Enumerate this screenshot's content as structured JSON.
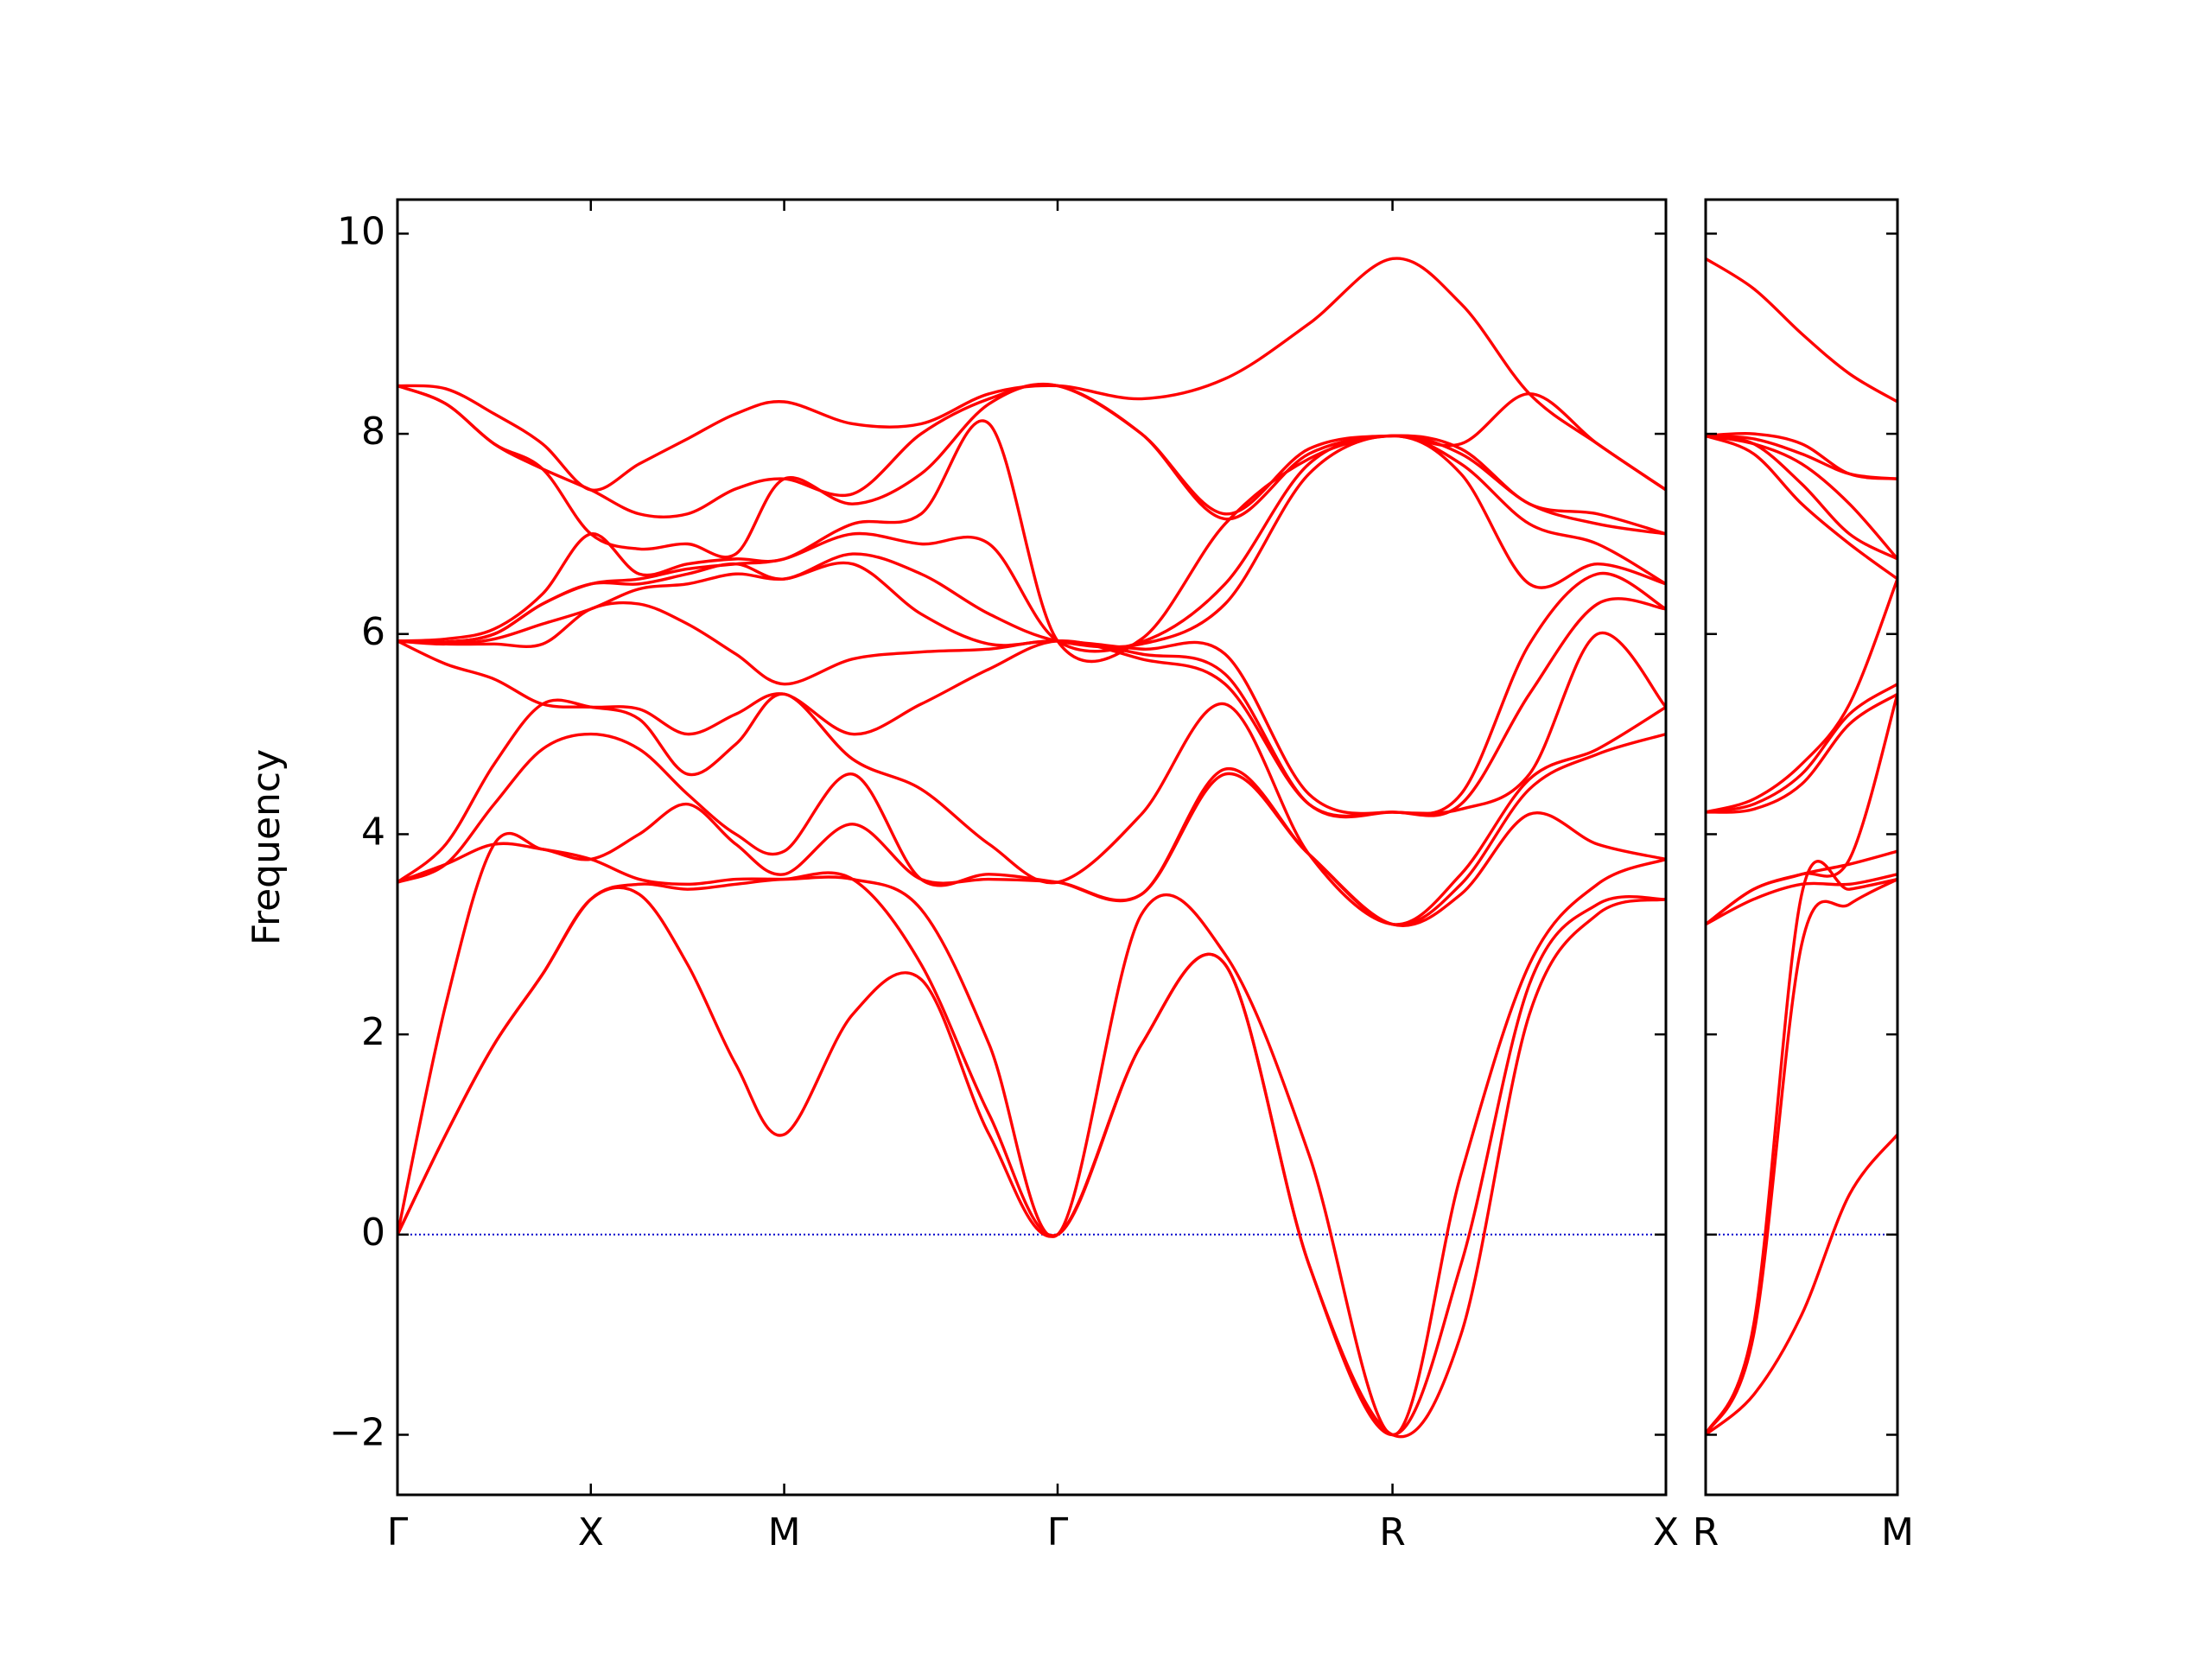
{
  "chart_data": [
    {
      "type": "line",
      "ylabel": "Frequency",
      "x": [
        0,
        0.125,
        0.25,
        0.375,
        0.5,
        0.625,
        0.75,
        0.875,
        1.0,
        1.177,
        1.354,
        1.53,
        1.707,
        1.924,
        2.14,
        2.357,
        2.573,
        2.75,
        2.927,
        3.103,
        3.28
      ],
      "xlim": [
        0,
        3.28
      ],
      "xticks": [
        {
          "value": 0,
          "label": "Γ"
        },
        {
          "value": 0.5,
          "label": "X"
        },
        {
          "value": 1.0,
          "label": "M"
        },
        {
          "value": 1.707,
          "label": "Γ"
        },
        {
          "value": 2.573,
          "label": "R"
        },
        {
          "value": 3.28,
          "label": "X"
        }
      ],
      "ylim": [
        -2.6,
        10.34
      ],
      "yticks": [
        {
          "value": -2,
          "label": "−2"
        },
        0,
        2,
        4,
        6,
        8,
        10
      ],
      "hline": {
        "y": 0,
        "color": "#0000cc",
        "style": "dotted"
      },
      "series": [
        {
          "color": "#ff0000",
          "values": [
            0,
            1.0,
            1.9,
            2.6,
            3.35,
            3.4,
            2.7,
            1.7,
            1.0,
            2.2,
            2.55,
            1.0,
            0,
            1.9,
            2.7,
            -0.3,
            -2,
            -1.0,
            2.2,
            3.2,
            3.35
          ]
        },
        {
          "color": "#ff0000",
          "values": [
            0,
            1.0,
            1.9,
            2.6,
            3.35,
            3.5,
            3.45,
            3.5,
            3.55,
            3.55,
            2.7,
            1.2,
            0,
            1.9,
            2.7,
            -0.3,
            -2,
            -0.3,
            2.5,
            3.3,
            3.35
          ]
        },
        {
          "color": "#ff0000",
          "values": [
            0,
            2.3,
            3.9,
            3.85,
            3.75,
            3.55,
            3.5,
            3.55,
            3.55,
            3.55,
            3.25,
            1.9,
            0,
            3.2,
            2.8,
            0.8,
            -2,
            0.6,
            2.7,
            3.5,
            3.75
          ]
        },
        {
          "color": "#ff0000",
          "values": [
            3.52,
            3.7,
            3.9,
            3.85,
            3.75,
            4.0,
            4.3,
            3.9,
            3.6,
            4.1,
            3.55,
            3.55,
            3.52,
            3.4,
            4.6,
            3.8,
            3.1,
            3.4,
            4.2,
            3.9,
            3.75
          ]
        },
        {
          "color": "#ff0000",
          "values": [
            3.52,
            3.7,
            4.3,
            4.85,
            5.0,
            4.85,
            4.4,
            4.0,
            3.83,
            4.6,
            3.55,
            3.6,
            3.52,
            3.4,
            4.65,
            3.8,
            3.1,
            3.5,
            4.45,
            4.8,
            5.0
          ]
        },
        {
          "color": "#ff0000",
          "values": [
            3.52,
            3.9,
            4.7,
            5.3,
            5.27,
            5.15,
            4.6,
            4.9,
            5.4,
            4.75,
            4.45,
            3.9,
            3.52,
            4.2,
            5.3,
            3.8,
            3.1,
            3.6,
            4.55,
            4.85,
            5.27
          ]
        },
        {
          "color": "#ff0000",
          "values": [
            5.93,
            5.7,
            5.55,
            5.3,
            5.27,
            5.25,
            5.0,
            5.2,
            5.4,
            5.0,
            5.3,
            5.65,
            5.93,
            5.75,
            5.5,
            4.3,
            4.22,
            4.25,
            4.6,
            6.0,
            5.27
          ]
        },
        {
          "color": "#ff0000",
          "values": [
            5.93,
            5.9,
            5.9,
            5.9,
            6.25,
            6.3,
            6.1,
            5.8,
            5.5,
            5.75,
            5.82,
            5.85,
            5.93,
            5.8,
            5.6,
            4.3,
            4.22,
            4.3,
            5.4,
            6.3,
            6.25
          ]
        },
        {
          "color": "#ff0000",
          "values": [
            5.93,
            5.9,
            5.95,
            6.1,
            6.25,
            6.45,
            6.5,
            6.6,
            6.55,
            6.7,
            6.2,
            5.9,
            5.93,
            5.85,
            5.8,
            4.4,
            4.22,
            4.4,
            5.9,
            6.6,
            6.25
          ]
        },
        {
          "color": "#ff0000",
          "values": [
            5.93,
            5.92,
            6.0,
            6.3,
            6.5,
            6.5,
            6.6,
            6.7,
            6.55,
            6.8,
            6.6,
            6.2,
            5.93,
            5.9,
            6.3,
            7.6,
            7.98,
            7.6,
            6.5,
            6.7,
            6.5
          ]
        },
        {
          "color": "#ff0000",
          "values": [
            5.93,
            5.92,
            6.0,
            6.3,
            6.5,
            6.55,
            6.65,
            6.7,
            6.75,
            7.0,
            6.9,
            6.9,
            5.93,
            5.92,
            6.5,
            7.7,
            7.98,
            7.7,
            7.1,
            6.9,
            6.5
          ]
        },
        {
          "color": "#ff0000",
          "values": [
            5.93,
            5.95,
            6.05,
            6.4,
            7.0,
            6.6,
            6.7,
            6.75,
            6.75,
            7.1,
            7.2,
            8.1,
            5.93,
            5.95,
            7.1,
            7.75,
            7.98,
            7.8,
            7.3,
            7.1,
            7.0
          ]
        },
        {
          "color": "#ff0000",
          "values": [
            8.48,
            8.3,
            7.9,
            7.65,
            7.0,
            6.85,
            6.9,
            6.8,
            7.55,
            7.3,
            7.6,
            8.3,
            8.48,
            8.0,
            7.15,
            7.8,
            7.98,
            7.85,
            7.3,
            7.2,
            7.0
          ]
        },
        {
          "color": "#ff0000",
          "values": [
            8.48,
            8.3,
            7.9,
            7.65,
            7.44,
            7.2,
            7.2,
            7.45,
            7.55,
            7.4,
            8.0,
            8.35,
            8.48,
            8.0,
            7.2,
            7.85,
            7.98,
            7.9,
            8.4,
            7.9,
            7.44
          ]
        },
        {
          "color": "#ff0000",
          "values": [
            8.48,
            8.45,
            8.2,
            7.9,
            7.44,
            7.7,
            7.95,
            8.2,
            8.32,
            8.1,
            8.1,
            8.4,
            8.48,
            8.35,
            8.55,
            9.1,
            9.75,
            9.3,
            8.4,
            7.9,
            7.44
          ]
        }
      ]
    },
    {
      "type": "line",
      "x": [
        0,
        0.177,
        0.354,
        0.53,
        0.707
      ],
      "xlim": [
        0,
        0.707
      ],
      "xticks": [
        {
          "value": 0,
          "label": "R"
        },
        {
          "value": 0.707,
          "label": "M"
        }
      ],
      "ylim": [
        -2.6,
        10.34
      ],
      "yticks": [
        -2,
        0,
        2,
        4,
        6,
        8,
        10
      ],
      "hline": {
        "y": 0,
        "color": "#0000cc",
        "style": "dotted"
      },
      "series": [
        {
          "color": "#ff0000",
          "values": [
            -2,
            -1.6,
            -0.8,
            0.4,
            1.0
          ]
        },
        {
          "color": "#ff0000",
          "values": [
            -2,
            -1.0,
            2.9,
            3.3,
            3.55
          ]
        },
        {
          "color": "#ff0000",
          "values": [
            -2,
            -0.9,
            3.4,
            3.45,
            3.55
          ]
        },
        {
          "color": "#ff0000",
          "values": [
            3.1,
            3.35,
            3.5,
            3.5,
            3.6
          ]
        },
        {
          "color": "#ff0000",
          "values": [
            3.1,
            3.45,
            3.6,
            3.7,
            3.83
          ]
        },
        {
          "color": "#ff0000",
          "values": [
            3.1,
            3.45,
            3.6,
            3.75,
            5.4
          ]
        },
        {
          "color": "#ff0000",
          "values": [
            4.22,
            4.25,
            4.5,
            5.1,
            5.4
          ]
        },
        {
          "color": "#ff0000",
          "values": [
            4.22,
            4.3,
            4.6,
            5.2,
            5.5
          ]
        },
        {
          "color": "#ff0000",
          "values": [
            4.22,
            4.35,
            4.7,
            5.3,
            6.55
          ]
        },
        {
          "color": "#ff0000",
          "values": [
            7.98,
            7.8,
            7.3,
            6.9,
            6.55
          ]
        },
        {
          "color": "#ff0000",
          "values": [
            7.98,
            7.9,
            7.5,
            7.0,
            6.75
          ]
        },
        {
          "color": "#ff0000",
          "values": [
            7.98,
            7.9,
            7.7,
            7.3,
            6.75
          ]
        },
        {
          "color": "#ff0000",
          "values": [
            7.98,
            7.95,
            7.8,
            7.6,
            7.55
          ]
        },
        {
          "color": "#ff0000",
          "values": [
            7.98,
            8.0,
            7.9,
            7.6,
            7.55
          ]
        },
        {
          "color": "#ff0000",
          "values": [
            9.75,
            9.45,
            9.0,
            8.6,
            8.32
          ]
        }
      ]
    }
  ]
}
